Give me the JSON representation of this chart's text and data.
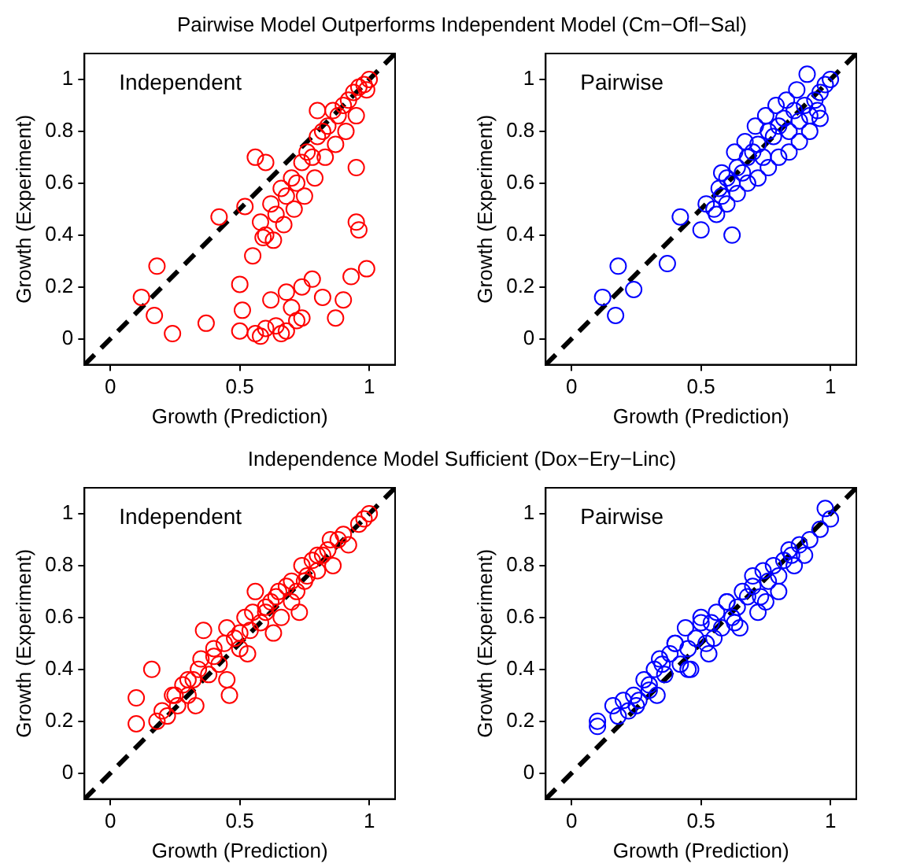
{
  "chart_data": [
    {
      "type": "scatter",
      "title": "Pairwise Model Outperforms Independent Model (Cm−Ofl−Sal)",
      "xlabel": "Growth (Prediction)",
      "ylabel": "Growth (Experiment)",
      "annotations": [
        "Independent"
      ],
      "xlim": [
        -0.1,
        1.1
      ],
      "ylim": [
        -0.1,
        1.1
      ],
      "xticks": [
        0,
        0.5,
        1
      ],
      "yticks": [
        0,
        0.2,
        0.4,
        0.6,
        0.8,
        1
      ],
      "grid": false,
      "legend": false,
      "series": [
        {
          "type": "scatter",
          "marker": "circle",
          "color": "#ff0000",
          "x": [
            0.12,
            0.17,
            0.18,
            0.24,
            0.37,
            0.42,
            0.56,
            0.6,
            0.52,
            0.55,
            0.5,
            0.51,
            0.5,
            0.58,
            0.62,
            0.64,
            0.66,
            0.68,
            0.7,
            0.72,
            0.74,
            0.76,
            0.78,
            0.8,
            0.82,
            0.84,
            0.86,
            0.88,
            0.9,
            0.92,
            0.94,
            0.96,
            0.98,
            1.0,
            0.63,
            0.67,
            0.71,
            0.75,
            0.79,
            0.83,
            0.87,
            0.91,
            0.95,
            0.99,
            0.56,
            0.6,
            0.64,
            0.68,
            0.72,
            0.58,
            0.66,
            0.74,
            0.62,
            0.68,
            0.74,
            0.78,
            0.82,
            0.7,
            0.9,
            0.93,
            0.99,
            0.87,
            0.95,
            0.96,
            0.95,
            0.8,
            0.6,
            0.59
          ],
          "values": [
            0.16,
            0.09,
            0.28,
            0.02,
            0.06,
            0.47,
            0.7,
            0.68,
            0.51,
            0.32,
            0.21,
            0.11,
            0.03,
            0.45,
            0.52,
            0.48,
            0.58,
            0.55,
            0.62,
            0.6,
            0.68,
            0.72,
            0.7,
            0.78,
            0.8,
            0.82,
            0.88,
            0.86,
            0.9,
            0.92,
            0.95,
            0.97,
            0.98,
            1.0,
            0.38,
            0.44,
            0.5,
            0.55,
            0.62,
            0.7,
            0.75,
            0.8,
            0.86,
            0.96,
            0.02,
            0.04,
            0.05,
            0.03,
            0.07,
            0.01,
            0.02,
            0.08,
            0.15,
            0.18,
            0.2,
            0.23,
            0.16,
            0.12,
            0.15,
            0.24,
            0.27,
            0.08,
            0.45,
            0.42,
            0.66,
            0.88,
            0.4,
            0.39
          ]
        },
        {
          "type": "line",
          "marker": "none",
          "line_style": "dashed",
          "color": "#000000",
          "x": [
            -0.1,
            1.1
          ],
          "values": [
            -0.1,
            1.1
          ]
        }
      ]
    },
    {
      "type": "scatter",
      "xlabel": "Growth (Prediction)",
      "ylabel": "Growth (Experiment)",
      "annotations": [
        "Pairwise"
      ],
      "xlim": [
        -0.1,
        1.1
      ],
      "ylim": [
        -0.1,
        1.1
      ],
      "xticks": [
        0,
        0.5,
        1
      ],
      "yticks": [
        0,
        0.2,
        0.4,
        0.6,
        0.8,
        1
      ],
      "grid": false,
      "legend": false,
      "series": [
        {
          "type": "scatter",
          "marker": "circle",
          "color": "#0000ff",
          "x": [
            0.12,
            0.17,
            0.18,
            0.24,
            0.37,
            0.42,
            0.5,
            0.62,
            0.52,
            0.55,
            0.57,
            0.58,
            0.6,
            0.62,
            0.64,
            0.66,
            0.68,
            0.7,
            0.72,
            0.74,
            0.76,
            0.78,
            0.8,
            0.82,
            0.84,
            0.86,
            0.88,
            0.9,
            0.92,
            0.94,
            0.96,
            0.98,
            1.0,
            0.56,
            0.6,
            0.64,
            0.68,
            0.72,
            0.76,
            0.8,
            0.84,
            0.88,
            0.92,
            0.96,
            0.58,
            0.63,
            0.67,
            0.71,
            0.75,
            0.79,
            0.83,
            0.87,
            0.91,
            0.95
          ],
          "values": [
            0.16,
            0.09,
            0.28,
            0.19,
            0.29,
            0.47,
            0.42,
            0.4,
            0.52,
            0.5,
            0.58,
            0.55,
            0.62,
            0.6,
            0.66,
            0.64,
            0.7,
            0.72,
            0.75,
            0.7,
            0.8,
            0.78,
            0.82,
            0.85,
            0.8,
            0.88,
            0.84,
            0.9,
            0.86,
            0.92,
            0.95,
            0.98,
            1.0,
            0.48,
            0.52,
            0.56,
            0.6,
            0.62,
            0.66,
            0.7,
            0.72,
            0.76,
            0.8,
            0.85,
            0.64,
            0.72,
            0.76,
            0.82,
            0.86,
            0.9,
            0.92,
            0.96,
            1.02,
            0.88
          ]
        },
        {
          "type": "line",
          "marker": "none",
          "line_style": "dashed",
          "color": "#000000",
          "x": [
            -0.1,
            1.1
          ],
          "values": [
            -0.1,
            1.1
          ]
        }
      ]
    },
    {
      "type": "scatter",
      "title": "Independence Model Sufficient (Dox−Ery−Linc)",
      "xlabel": "Growth (Prediction)",
      "ylabel": "Growth (Experiment)",
      "annotations": [
        "Independent"
      ],
      "xlim": [
        -0.1,
        1.1
      ],
      "ylim": [
        -0.1,
        1.1
      ],
      "xticks": [
        0,
        0.5,
        1
      ],
      "yticks": [
        0,
        0.2,
        0.4,
        0.6,
        0.8,
        1
      ],
      "grid": false,
      "legend": false,
      "series": [
        {
          "type": "scatter",
          "marker": "circle",
          "color": "#ff0000",
          "x": [
            0.1,
            0.1,
            0.16,
            0.18,
            0.2,
            0.22,
            0.24,
            0.26,
            0.28,
            0.3,
            0.32,
            0.34,
            0.36,
            0.38,
            0.4,
            0.42,
            0.44,
            0.46,
            0.48,
            0.5,
            0.52,
            0.54,
            0.56,
            0.58,
            0.6,
            0.62,
            0.64,
            0.66,
            0.68,
            0.7,
            0.72,
            0.74,
            0.76,
            0.78,
            0.8,
            0.82,
            0.84,
            0.86,
            0.88,
            0.9,
            0.92,
            0.96,
            0.98,
            1.0,
            0.25,
            0.3,
            0.35,
            0.4,
            0.45,
            0.5,
            0.55,
            0.6,
            0.65,
            0.7,
            0.75,
            0.8,
            0.85,
            0.33,
            0.45,
            0.53,
            0.63,
            0.73
          ],
          "values": [
            0.29,
            0.19,
            0.4,
            0.2,
            0.24,
            0.22,
            0.3,
            0.26,
            0.34,
            0.3,
            0.36,
            0.4,
            0.55,
            0.38,
            0.45,
            0.42,
            0.5,
            0.3,
            0.52,
            0.48,
            0.6,
            0.55,
            0.7,
            0.58,
            0.62,
            0.66,
            0.68,
            0.6,
            0.72,
            0.74,
            0.7,
            0.8,
            0.76,
            0.82,
            0.78,
            0.84,
            0.86,
            0.8,
            0.9,
            0.92,
            0.88,
            0.96,
            0.98,
            1.0,
            0.3,
            0.36,
            0.44,
            0.48,
            0.56,
            0.54,
            0.62,
            0.64,
            0.7,
            0.66,
            0.74,
            0.84,
            0.9,
            0.26,
            0.36,
            0.46,
            0.54,
            0.62
          ]
        },
        {
          "type": "line",
          "marker": "none",
          "line_style": "dashed",
          "color": "#000000",
          "x": [
            -0.1,
            1.1
          ],
          "values": [
            -0.1,
            1.1
          ]
        }
      ]
    },
    {
      "type": "scatter",
      "xlabel": "Growth (Prediction)",
      "ylabel": "Growth (Experiment)",
      "annotations": [
        "Pairwise"
      ],
      "xlim": [
        -0.1,
        1.1
      ],
      "ylim": [
        -0.1,
        1.1
      ],
      "xticks": [
        0,
        0.5,
        1
      ],
      "yticks": [
        0,
        0.2,
        0.4,
        0.6,
        0.8,
        1
      ],
      "grid": false,
      "legend": false,
      "series": [
        {
          "type": "scatter",
          "marker": "circle",
          "color": "#0000ff",
          "x": [
            0.1,
            0.1,
            0.16,
            0.18,
            0.2,
            0.22,
            0.24,
            0.26,
            0.28,
            0.3,
            0.32,
            0.34,
            0.36,
            0.38,
            0.4,
            0.42,
            0.44,
            0.46,
            0.48,
            0.5,
            0.52,
            0.54,
            0.56,
            0.58,
            0.6,
            0.62,
            0.64,
            0.66,
            0.68,
            0.7,
            0.72,
            0.74,
            0.76,
            0.78,
            0.8,
            0.82,
            0.84,
            0.86,
            0.88,
            0.9,
            0.92,
            0.96,
            0.98,
            1.0,
            0.25,
            0.3,
            0.35,
            0.4,
            0.45,
            0.5,
            0.55,
            0.6,
            0.65,
            0.7,
            0.75,
            0.8,
            0.85,
            0.33,
            0.45,
            0.53,
            0.63,
            0.73
          ],
          "values": [
            0.18,
            0.2,
            0.26,
            0.22,
            0.28,
            0.24,
            0.3,
            0.28,
            0.36,
            0.34,
            0.4,
            0.44,
            0.38,
            0.46,
            0.5,
            0.42,
            0.56,
            0.4,
            0.52,
            0.6,
            0.5,
            0.58,
            0.62,
            0.56,
            0.66,
            0.6,
            0.64,
            0.7,
            0.68,
            0.72,
            0.62,
            0.78,
            0.74,
            0.8,
            0.76,
            0.82,
            0.86,
            0.8,
            0.88,
            0.84,
            0.9,
            0.94,
            1.02,
            0.98,
            0.26,
            0.32,
            0.42,
            0.5,
            0.4,
            0.58,
            0.52,
            0.66,
            0.56,
            0.76,
            0.66,
            0.7,
            0.84,
            0.3,
            0.48,
            0.46,
            0.58,
            0.68
          ]
        },
        {
          "type": "line",
          "marker": "none",
          "line_style": "dashed",
          "color": "#000000",
          "x": [
            -0.1,
            1.1
          ],
          "values": [
            -0.1,
            1.1
          ]
        }
      ]
    }
  ]
}
